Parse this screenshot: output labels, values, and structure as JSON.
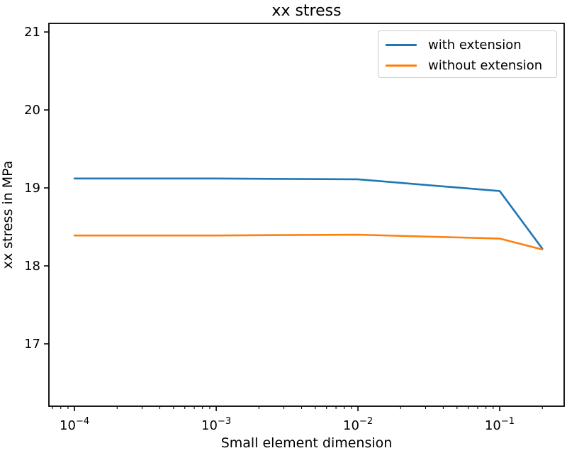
{
  "chart_data": {
    "type": "line",
    "title": "xx stress",
    "xlabel": "Small element dimension",
    "ylabel": "xx stress in MPa",
    "xscale": "log",
    "xlim": [
      6.6e-05,
      0.285
    ],
    "ylim": [
      16.2,
      21.11
    ],
    "yticks": [
      17,
      18,
      19,
      20,
      21
    ],
    "xtick_exponents": [
      -4,
      -3,
      -2,
      -1
    ],
    "grid": false,
    "legend_position": "upper right",
    "x": [
      0.0001,
      0.001,
      0.01,
      0.1,
      0.2
    ],
    "series": [
      {
        "name": "with extension",
        "color": "#1f77b4",
        "values": [
          19.12,
          19.12,
          19.11,
          18.96,
          18.22
        ]
      },
      {
        "name": "without extension",
        "color": "#ff7f0e",
        "values": [
          18.39,
          18.39,
          18.4,
          18.35,
          18.21
        ]
      }
    ],
    "axis_color": "#000000",
    "tick_label_fontsize_px": 18
  }
}
